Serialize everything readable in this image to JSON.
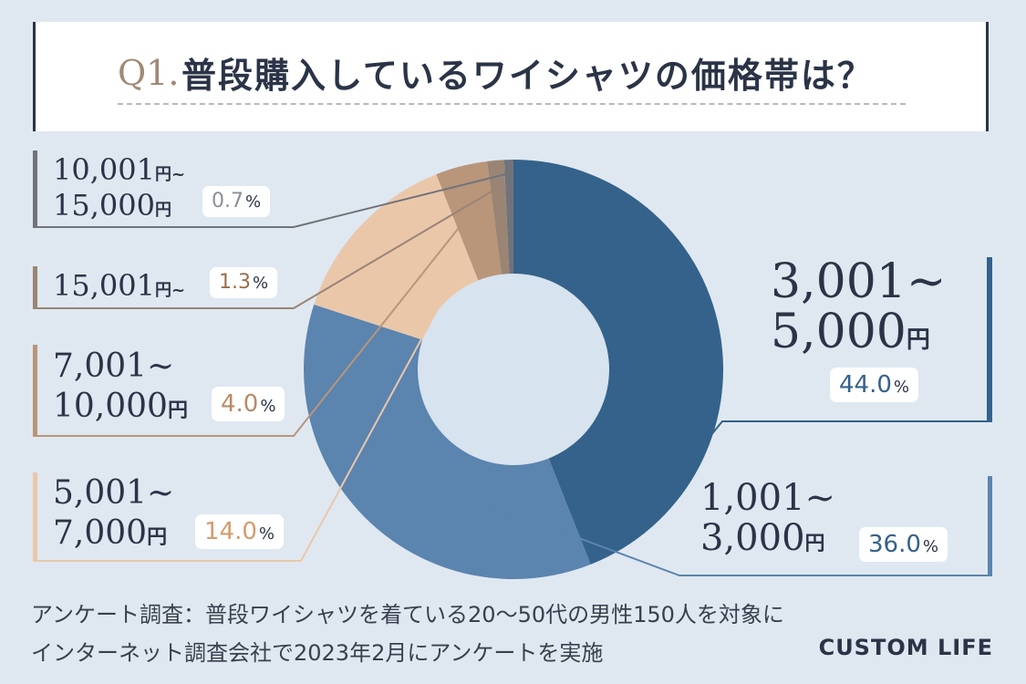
{
  "title": {
    "q": "Q1.",
    "text": "普段購入しているワイシャツの価格帯は？"
  },
  "colors": {
    "navy": "#34628b",
    "blue": "#5b84af",
    "peach": "#ebc7aa",
    "tan": "#b9957a",
    "brown": "#9a8575",
    "grey": "#70737a",
    "hole": "#d7e3ee"
  },
  "chart_data": {
    "type": "pie",
    "donut": true,
    "title": "普段購入しているワイシャツの価格帯は？",
    "series": [
      {
        "name": "3,001~5,000円",
        "value": 44.0
      },
      {
        "name": "1,001~3,000円",
        "value": 36.0
      },
      {
        "name": "5,001~7,000円",
        "value": 14.0
      },
      {
        "name": "7,001~10,000円",
        "value": 4.0
      },
      {
        "name": "15,001円~",
        "value": 1.3
      },
      {
        "name": "10,001円~15,000円",
        "value": 0.7
      }
    ]
  },
  "labels": {
    "s1": {
      "line1": "3,001~",
      "line2": "5,000",
      "unit": "円",
      "pct": "44.0",
      "pct_unit": "%"
    },
    "s2": {
      "line1": "1,001~",
      "line2": "3,000",
      "unit": "円",
      "pct": "36.0",
      "pct_unit": "%"
    },
    "s3": {
      "line1": "5,001~",
      "line2": "7,000",
      "unit": "円",
      "pct": "14.0",
      "pct_unit": "%"
    },
    "s4": {
      "line1": "7,001~",
      "line2": "10,000",
      "unit": "円",
      "pct": "4.0",
      "pct_unit": "%"
    },
    "s5": {
      "line1": "15,001",
      "unit": "円~",
      "pct": "1.3",
      "pct_unit": "%"
    },
    "s6": {
      "line1": "10,001",
      "unit1": "円~",
      "line2": "15,000",
      "unit": "円",
      "pct": "0.7",
      "pct_unit": "%"
    }
  },
  "footer": {
    "line1": "アンケート調査：普段ワイシャツを着ている20～50代の男性150人を対象に",
    "line2": "インターネット調査会社で2023年2月にアンケートを実施",
    "brand": "CUSTOM LIFE"
  }
}
